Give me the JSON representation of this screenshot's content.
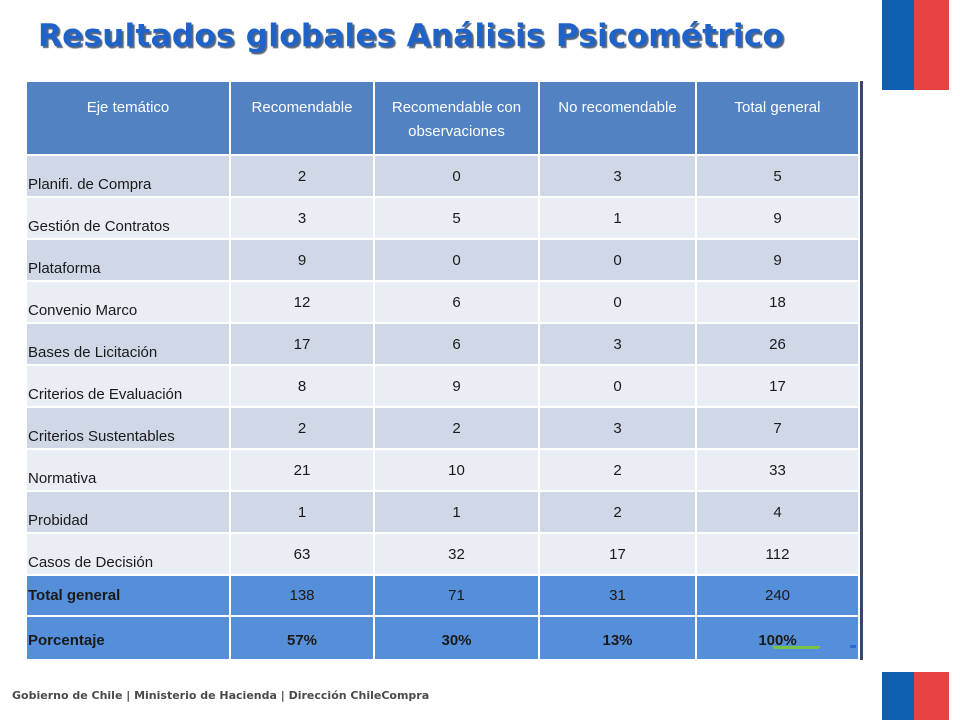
{
  "slide": {
    "title": "Resultados globales Análisis Psicométrico",
    "footer": "Gobierno de Chile | Ministerio de Hacienda | Dirección ChileCompra"
  },
  "table": {
    "headers": [
      "Eje temático",
      "Recomendable",
      "Recomendable con observaciones",
      "No recomendable",
      "Total general"
    ],
    "rows": [
      {
        "label": "Planifi. de Compra",
        "values": [
          "2",
          "0",
          "3",
          "5"
        ]
      },
      {
        "label": "Gestión de Contratos",
        "values": [
          "3",
          "5",
          "1",
          "9"
        ]
      },
      {
        "label": "Plataforma",
        "values": [
          "9",
          "0",
          "0",
          "9"
        ]
      },
      {
        "label": "Convenio Marco",
        "values": [
          "12",
          "6",
          "0",
          "18"
        ]
      },
      {
        "label": "Bases de Licitación",
        "values": [
          "17",
          "6",
          "3",
          "26"
        ]
      },
      {
        "label": "Criterios de Evaluación",
        "values": [
          "8",
          "9",
          "0",
          "17"
        ]
      },
      {
        "label": "Criterios Sustentables",
        "values": [
          "2",
          "2",
          "3",
          "7"
        ]
      },
      {
        "label": "Normativa",
        "values": [
          "21",
          "10",
          "2",
          "33"
        ]
      },
      {
        "label": "Probidad",
        "values": [
          "1",
          "1",
          "2",
          "4"
        ]
      },
      {
        "label": "Casos de Decisión",
        "values": [
          "63",
          "32",
          "17",
          "112"
        ]
      }
    ],
    "total": {
      "label": "Total general",
      "values": [
        "138",
        "71",
        "31",
        "240"
      ]
    },
    "percentage": {
      "label": "Porcentaje",
      "values": [
        "57%",
        "30%",
        "13%",
        "100%"
      ]
    }
  },
  "icons": {
    "flag_top": "chile-flag-icon",
    "flag_bottom": "chile-flag-icon"
  },
  "colors": {
    "title": "#1f63c8",
    "header_bg": "#5282c1",
    "row_odd": "#d0d8e8",
    "row_even": "#e9edf4",
    "total_bg": "#558fd9",
    "flag_blue": "#0d5fb0",
    "flag_red": "#e84343"
  }
}
